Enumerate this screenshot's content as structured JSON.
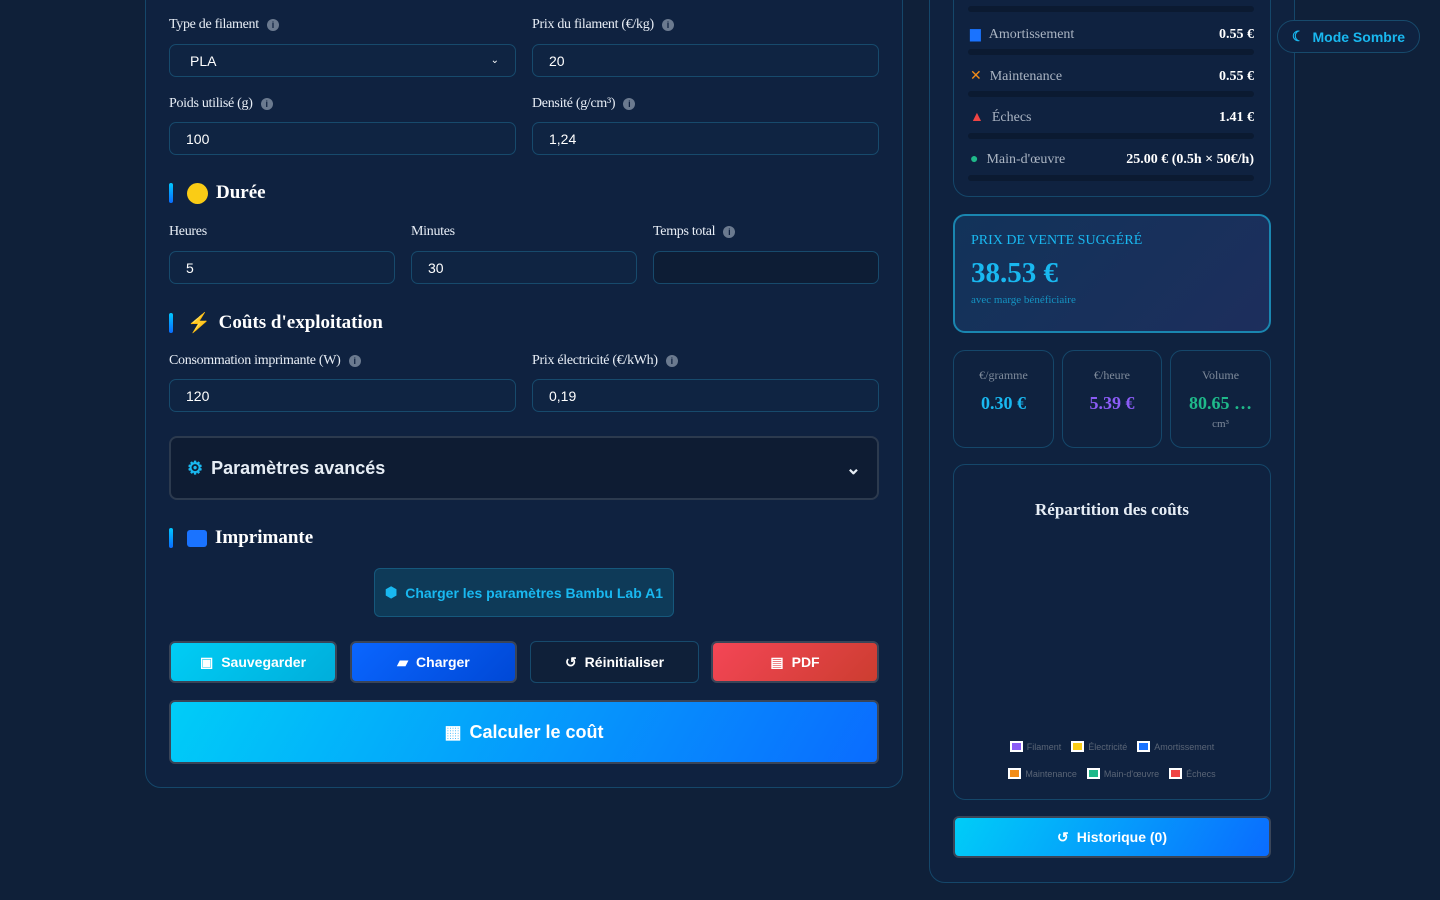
{
  "form": {
    "filament_type": {
      "label": "Type de filament",
      "value": "PLA"
    },
    "filament_price": {
      "label": "Prix du filament (€/kg)",
      "value": "20"
    },
    "weight": {
      "label": "Poids utilisé (g)",
      "value": "100"
    },
    "density": {
      "label": "Densité (g/cm³)",
      "value": "1,24"
    },
    "duration": {
      "title": "Durée",
      "hours_label": "Heures",
      "hours": "5",
      "minutes_label": "Minutes",
      "minutes": "30",
      "total_label": "Temps total",
      "total": ""
    },
    "operating": {
      "title": "Coûts d'exploitation",
      "power_label": "Consommation imprimante (W)",
      "power": "120",
      "elec_label": "Prix électricité (€/kWh)",
      "elec": "0,19"
    },
    "advanced": {
      "title": "Paramètres avancés"
    },
    "printer": {
      "title": "Imprimante",
      "load_preset": "Charger les paramètres Bambu Lab A1"
    },
    "buttons": {
      "save": "Sauvegarder",
      "load": "Charger",
      "reset": "Réinitialiser",
      "pdf": "PDF",
      "calculate": "Calculer le coût"
    }
  },
  "results": {
    "rows": [
      {
        "name": "Amortissement",
        "value": "0.55 €",
        "icon": "printer-icon",
        "color": "#1a73ff"
      },
      {
        "name": "Maintenance",
        "value": "0.55 €",
        "icon": "tools-icon",
        "color": "#f28c18"
      },
      {
        "name": "Échecs",
        "value": "1.41 €",
        "icon": "warning-icon",
        "color": "#ef4444"
      },
      {
        "name": "Main-d'œuvre",
        "value": "25.00 € (0.5h × 50€/h)",
        "icon": "worker-icon",
        "color": "#1fb98a"
      }
    ],
    "suggested": {
      "title": "PRIX DE VENTE SUGGÉRÉ",
      "price": "38.53 €",
      "note": "avec marge bénéficiaire"
    },
    "per_gram": {
      "label": "€/gramme",
      "value": "0.30 €"
    },
    "per_hour": {
      "label": "€/heure",
      "value": "5.39 €"
    },
    "volume": {
      "label": "Volume",
      "value": "80.65 …",
      "unit": "cm³"
    },
    "chart": {
      "title": "Répartition des coûts",
      "legend": [
        {
          "name": "Filament",
          "color": "#8b5cf6"
        },
        {
          "name": "Électricité",
          "color": "#facc15"
        },
        {
          "name": "Amortissement",
          "color": "#1a73ff"
        },
        {
          "name": "Maintenance",
          "color": "#f28c18"
        },
        {
          "name": "Main-d'œuvre",
          "color": "#1fb98a"
        },
        {
          "name": "Échecs",
          "color": "#ef4444"
        }
      ]
    },
    "history": "Historique (0)"
  },
  "theme_toggle": "Mode Sombre"
}
